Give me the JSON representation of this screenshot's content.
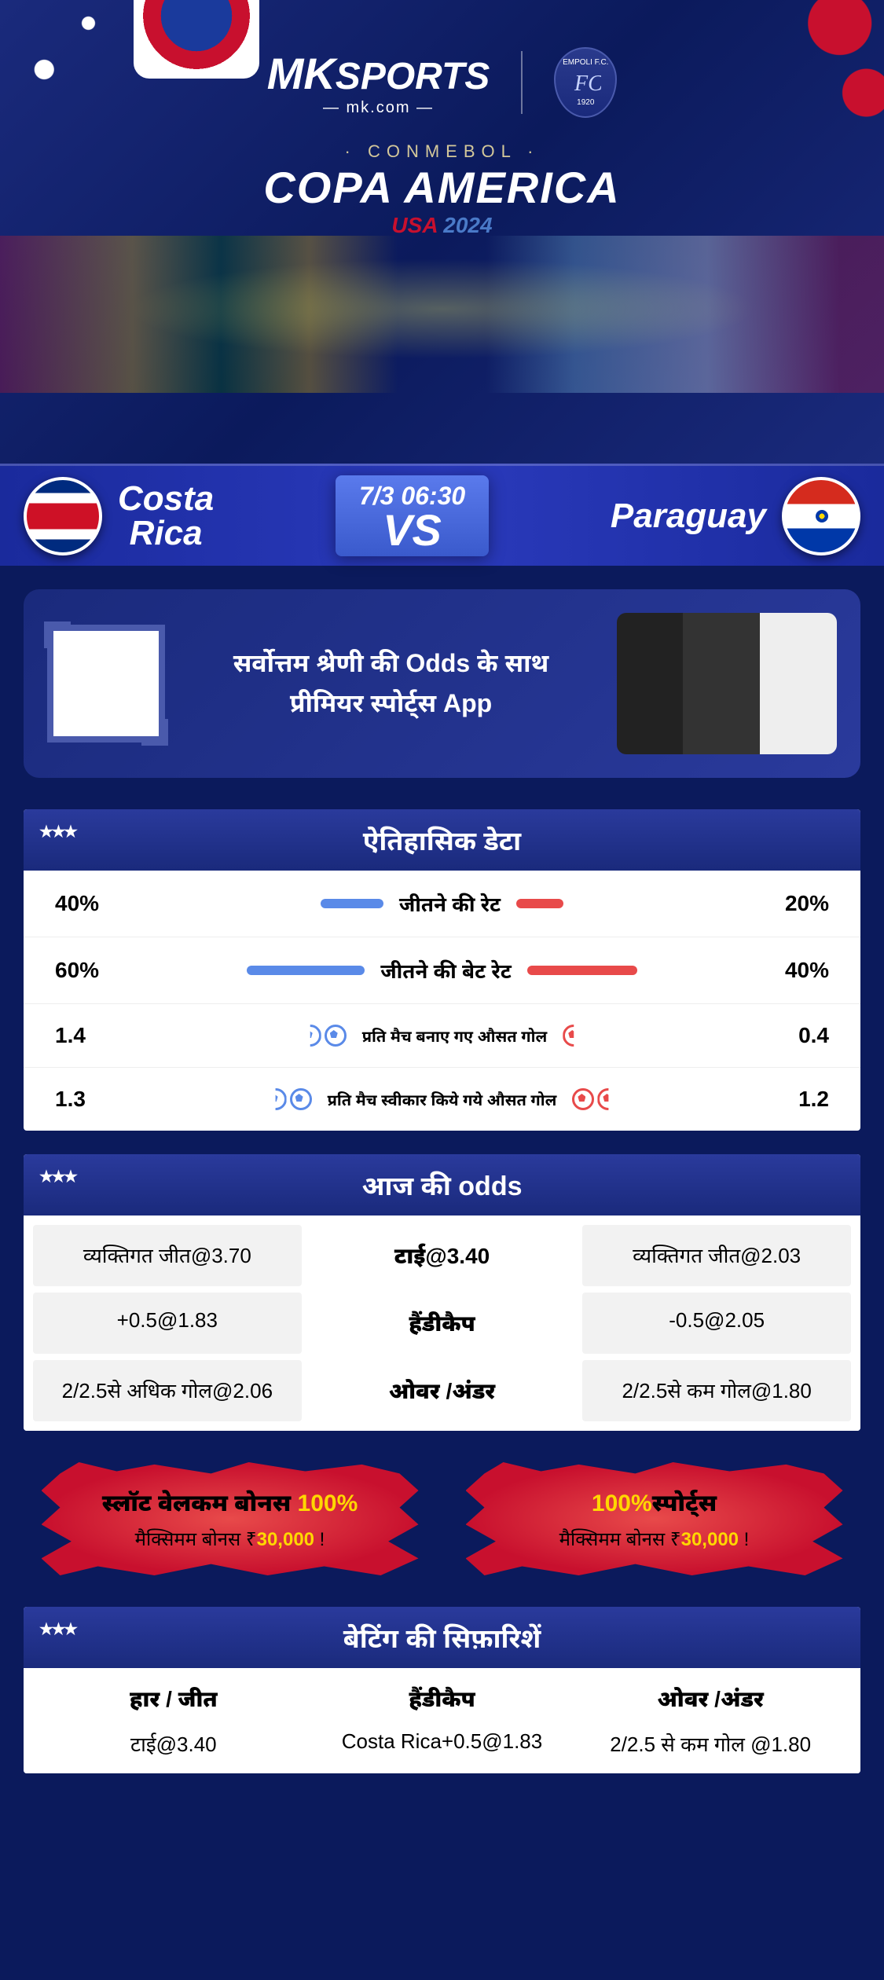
{
  "brand": {
    "logo_prefix": "MK",
    "logo_text": "SPORTS",
    "logo_sub": "— mk.com —",
    "partner_top": "EMPOLI F.C.",
    "partner_year": "1920"
  },
  "event": {
    "small": "· CONMEBOL ·",
    "main": "COPA AMERICA",
    "sub_usa": "USA",
    "sub_year": "2024"
  },
  "match": {
    "team_a": "Costa Rica",
    "team_b": "Paraguay",
    "datetime": "7/3 06:30",
    "vs": "VS"
  },
  "promo": {
    "line1": "सर्वोत्तम श्रेणी की Odds के साथ",
    "line2": "प्रीमियर स्पोर्ट्स App"
  },
  "history": {
    "title": "ऐतिहासिक डेटा",
    "rows": [
      {
        "left": "40%",
        "label": "जीतने की रेट",
        "right": "20%",
        "type": "bar",
        "lw": 80,
        "rw": 60,
        "small": false
      },
      {
        "left": "60%",
        "label": "जीतने की बेट रेट",
        "right": "40%",
        "type": "bar",
        "lw": 150,
        "rw": 140,
        "small": false
      },
      {
        "left": "1.4",
        "label": "प्रति मैच बनाए गए औसत गोल",
        "right": "0.4",
        "type": "balls",
        "lb": 1.5,
        "rb": 0.5,
        "small": true
      },
      {
        "left": "1.3",
        "label": "प्रति मैच स्वीकार किये गये औसत गोल",
        "right": "1.2",
        "type": "balls",
        "lb": 1.5,
        "rb": 1.5,
        "small": true
      }
    ]
  },
  "odds": {
    "title": "आज की odds",
    "grid": [
      [
        "व्यक्तिगत जीत@3.70",
        "टाई@3.40",
        "व्यक्तिगत जीत@2.03"
      ],
      [
        "+0.5@1.83",
        "हैंडीकैप",
        "-0.5@2.05"
      ],
      [
        "2/2.5से अधिक गोल@2.06",
        "ओवर /अंडर",
        "2/2.5से कम गोल@1.80"
      ]
    ]
  },
  "bonuses": [
    {
      "title_pre": "स्लॉट वेलकम बोनस ",
      "pct": "100%",
      "title_post": "",
      "sub_pre": "मैक्सिमम बोनस ₹",
      "amt": "30,000",
      "sub_post": " !"
    },
    {
      "title_pre": "",
      "pct": "100%",
      "title_post": "स्पोर्ट्स",
      "sub_pre": "मैक्सिमम बोनस  ₹",
      "amt": "30,000",
      "sub_post": " !"
    }
  ],
  "recs": {
    "title": "बेटिंग की सिफ़ारिशें",
    "cols": [
      {
        "head": "हार / जीत",
        "val": "टाई@3.40"
      },
      {
        "head": "हैंडीकैप",
        "val": "Costa Rica+0.5@1.83"
      },
      {
        "head": "ओवर /अंडर",
        "val": "2/2.5 से कम गोल @1.80"
      }
    ]
  },
  "colors": {
    "bg": "#0b1a5c",
    "accent_red": "#c8102e",
    "accent_blue": "#5a8ae8",
    "accent_gold": "#ffd700",
    "bar_blue": "#5a8ae8",
    "bar_red": "#e84a4a"
  }
}
